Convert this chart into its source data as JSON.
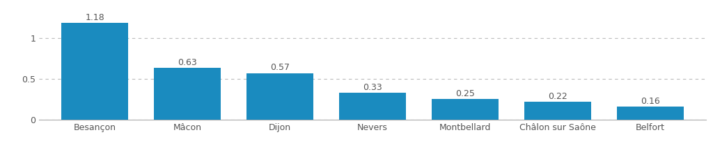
{
  "categories": [
    "Besançon",
    "Mâcon",
    "Dijon",
    "Nevers",
    "Montbellard",
    "Châlon sur Saône",
    "Belfort"
  ],
  "values": [
    1.18,
    0.63,
    0.57,
    0.33,
    0.25,
    0.22,
    0.16
  ],
  "bar_color": "#1a8bbf",
  "background_color": "#ffffff",
  "yticks": [
    0,
    0.5,
    1
  ],
  "ylim": [
    0,
    1.32
  ],
  "grid_color": "#bbbbbb",
  "label_color": "#555555",
  "tick_label_color": "#555555",
  "label_fontsize": 9,
  "tick_fontsize": 9,
  "bar_width": 0.72
}
